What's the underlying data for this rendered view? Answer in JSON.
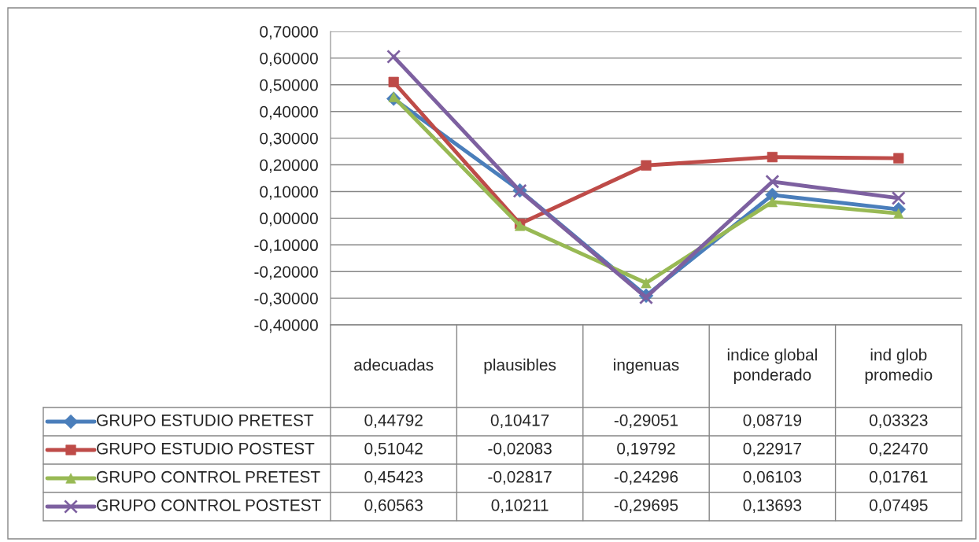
{
  "chart_data": {
    "type": "line",
    "categories": [
      "adecuadas",
      "plausibles",
      "ingenuas",
      "indice global ponderado",
      "ind glob promedio"
    ],
    "ylim": [
      -0.4,
      0.7
    ],
    "yticks": [
      {
        "value": -0.4,
        "label": "-0,40000"
      },
      {
        "value": -0.3,
        "label": "-0,30000"
      },
      {
        "value": -0.2,
        "label": "-0,20000"
      },
      {
        "value": -0.1,
        "label": "-0,10000"
      },
      {
        "value": 0,
        "label": "0,00000"
      },
      {
        "value": 0.1,
        "label": "0,10000"
      },
      {
        "value": 0.2,
        "label": "0,20000"
      },
      {
        "value": 0.3,
        "label": "0,30000"
      },
      {
        "value": 0.4,
        "label": "0,40000"
      },
      {
        "value": 0.5,
        "label": "0,50000"
      },
      {
        "value": 0.6,
        "label": "0,60000"
      },
      {
        "value": 0.7,
        "label": "0,70000"
      }
    ],
    "grid": "y",
    "legend": "bottom",
    "series": [
      {
        "name": "GRUPO ESTUDIO PRETEST",
        "color": "#4a7ebb",
        "marker": "diamond",
        "values": [
          0.44792,
          0.10417,
          -0.29051,
          0.08719,
          0.03323
        ],
        "value_labels": [
          "0,44792",
          "0,10417",
          "-0,29051",
          "0,08719",
          "0,03323"
        ]
      },
      {
        "name": "GRUPO ESTUDIO POSTEST",
        "color": "#be4b48",
        "marker": "square",
        "values": [
          0.51042,
          -0.02083,
          0.19792,
          0.22917,
          0.2247
        ],
        "value_labels": [
          "0,51042",
          "-0,02083",
          "0,19792",
          "0,22917",
          "0,22470"
        ]
      },
      {
        "name": "GRUPO CONTROL PRETEST",
        "color": "#98b954",
        "marker": "triangle",
        "values": [
          0.45423,
          -0.02817,
          -0.24296,
          0.06103,
          0.01761
        ],
        "value_labels": [
          "0,45423",
          "-0,02817",
          "-0,24296",
          "0,06103",
          "0,01761"
        ]
      },
      {
        "name": "GRUPO CONTROL POSTEST",
        "color": "#7d60a0",
        "marker": "cross",
        "values": [
          0.60563,
          0.10211,
          -0.29695,
          0.13693,
          0.07495
        ],
        "value_labels": [
          "0,60563",
          "0,10211",
          "-0,29695",
          "0,13693",
          "0,07495"
        ]
      }
    ]
  }
}
